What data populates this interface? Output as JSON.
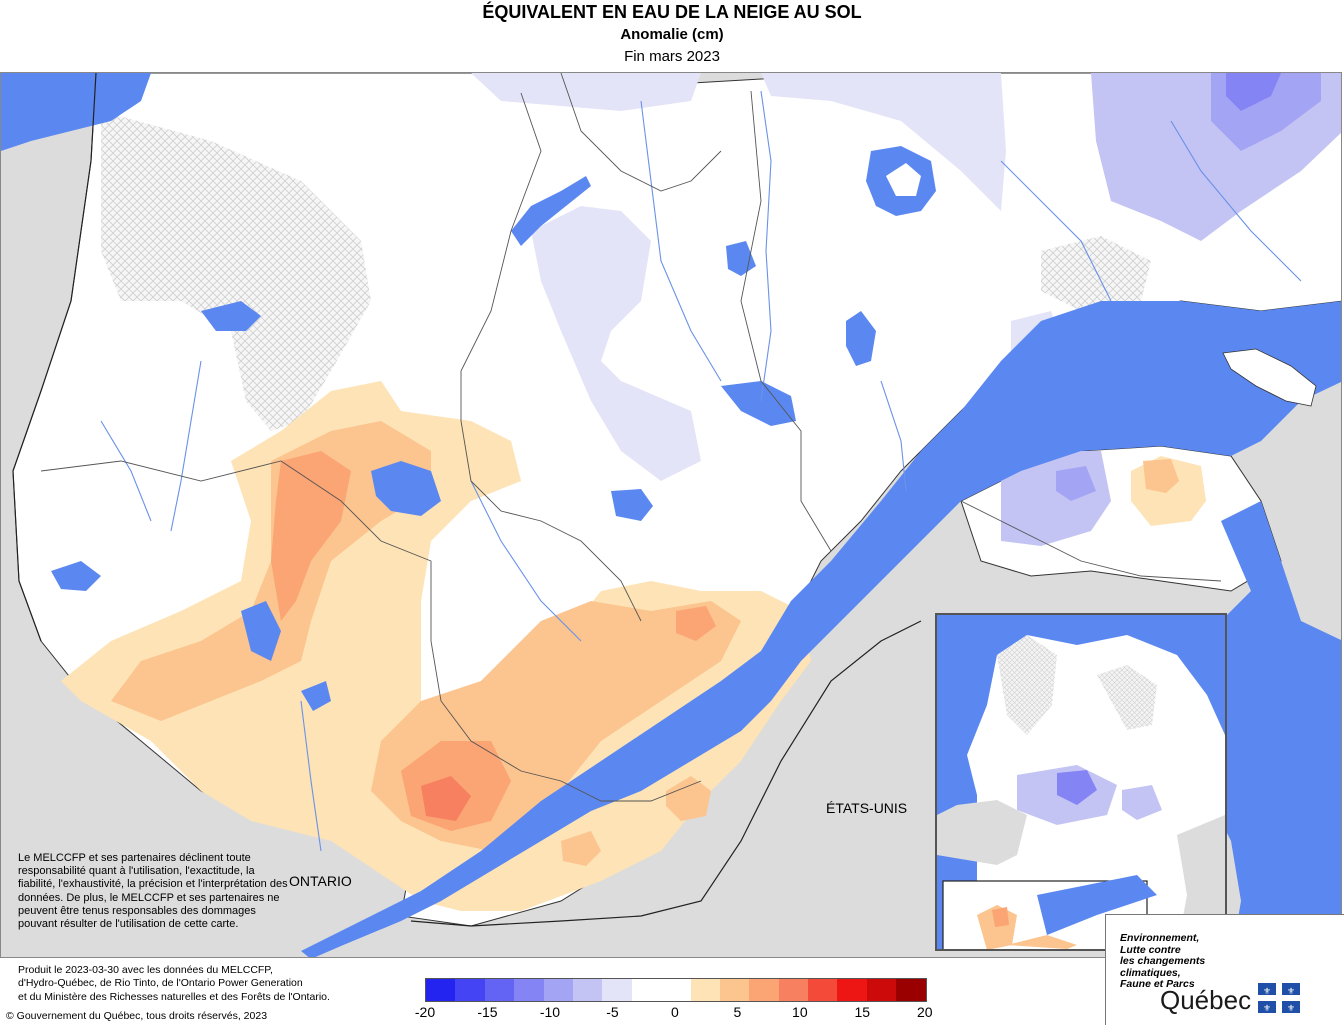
{
  "header": {
    "title": "ÉQUIVALENT EN EAU DE LA NEIGE AU SOL",
    "subtitle": "Anomalie (cm)",
    "period": "Fin mars 2023"
  },
  "map": {
    "labels": {
      "ontario": "ONTARIO",
      "usa": "ÉTATS-UNIS"
    },
    "colors": {
      "water": "#5b88f0",
      "land_outside": "#dcdcdc",
      "no_data_hatch": "#cfcfcf",
      "boundary": "#444444",
      "river": "#6a92e8"
    }
  },
  "disclaimer": "Le MELCCFP et ses partenaires déclinent toute responsabilité quant à l'utilisation, l'exactitude, la fiabilité, l'exhaustivité, la précision et l'interprétation des données. De plus, le MELCCFP et ses partenaires ne peuvent être tenus responsables des dommages pouvant résulter de l'utilisation de cette carte.",
  "production": {
    "line1": "Produit le 2023-03-30 avec les données du MELCCFP,",
    "line2": "d'Hydro-Québec, de Rio Tinto, de l'Ontario Power Generation",
    "line3": "et du Ministère des Richesses naturelles et des Forêts de l'Ontario."
  },
  "copyright": "© Gouvernement du Québec, tous droits réservés, 2023",
  "legend": {
    "colors": [
      "#2424f0",
      "#4444f4",
      "#6464f4",
      "#8484f4",
      "#a4a4f4",
      "#c4c4f4",
      "#e4e4f8",
      "#ffffff",
      "#ffffff",
      "#fde3b5",
      "#fcc48e",
      "#fba474",
      "#f78060",
      "#f44a3a",
      "#ee1515",
      "#cc0a0a",
      "#9a0000"
    ],
    "ticks": [
      "-20",
      "-15",
      "-10",
      "-5",
      "0",
      "5",
      "10",
      "15",
      "20"
    ]
  },
  "logo": {
    "ministry_line1": "Environnement,",
    "ministry_line2": "Lutte contre",
    "ministry_line3": "les changements",
    "ministry_line4": "climatiques,",
    "ministry_line5": "Faune et Parcs",
    "name": "Québec"
  }
}
